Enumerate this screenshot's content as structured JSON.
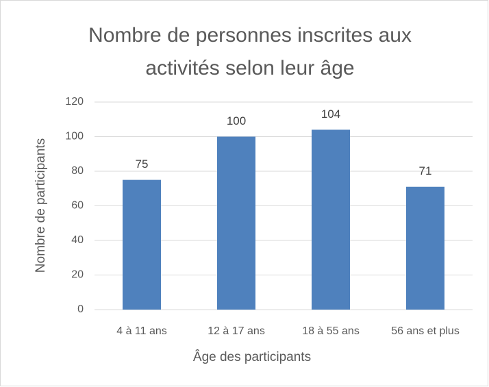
{
  "chart_data": {
    "type": "bar",
    "title": "Nombre de personnes inscrites aux activités selon leur âge",
    "x_label": "Âge des participants",
    "y_label": "Nombre de participants",
    "categories": [
      "4 à 11 ans",
      "12 à 17 ans",
      "18 à 55 ans",
      "56 ans et plus"
    ],
    "values": [
      75,
      100,
      104,
      71
    ],
    "color": "#4f81bd",
    "ylim": [
      0,
      120
    ],
    "yticks": [
      0,
      20,
      40,
      60,
      80,
      100,
      120
    ],
    "grid": true
  }
}
